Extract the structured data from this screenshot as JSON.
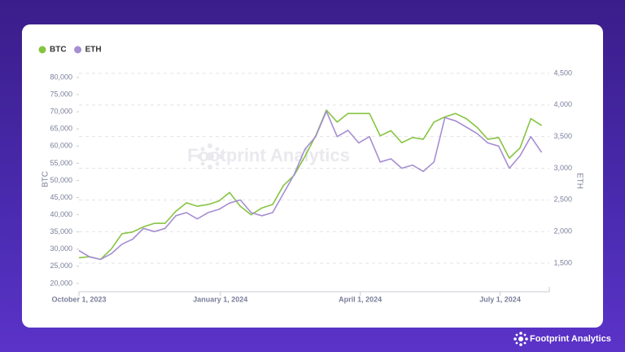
{
  "chart_data": {
    "type": "line",
    "watermark": "Footprint Analytics",
    "footer": "Footprint Analytics",
    "y_label": "BTC",
    "y2_label": "ETH",
    "x": [
      "2023-10-01",
      "2023-10-08",
      "2023-10-15",
      "2023-10-22",
      "2023-10-29",
      "2023-11-05",
      "2023-11-12",
      "2023-11-19",
      "2023-11-26",
      "2023-12-03",
      "2023-12-10",
      "2023-12-17",
      "2023-12-24",
      "2023-12-31",
      "2024-01-07",
      "2024-01-14",
      "2024-01-21",
      "2024-01-28",
      "2024-02-04",
      "2024-02-11",
      "2024-02-18",
      "2024-02-25",
      "2024-03-03",
      "2024-03-10",
      "2024-03-17",
      "2024-03-24",
      "2024-03-31",
      "2024-04-07",
      "2024-04-14",
      "2024-04-21",
      "2024-04-28",
      "2024-05-05",
      "2024-05-12",
      "2024-05-19",
      "2024-05-26",
      "2024-06-02",
      "2024-06-09",
      "2024-06-16",
      "2024-06-23",
      "2024-06-30",
      "2024-07-07",
      "2024-07-14",
      "2024-07-21",
      "2024-07-28"
    ],
    "series": [
      {
        "name": "BTC",
        "color": "#86c440",
        "axis": "y",
        "values": [
          27500,
          27800,
          27000,
          30000,
          34500,
          35000,
          36500,
          37500,
          37500,
          41000,
          43500,
          42500,
          43000,
          44000,
          46500,
          42500,
          40000,
          42000,
          43000,
          48500,
          51500,
          57000,
          63000,
          70500,
          67000,
          69500,
          69500,
          69500,
          63000,
          64500,
          61000,
          62500,
          62000,
          67000,
          68500,
          69500,
          68000,
          65500,
          62000,
          62500,
          56500,
          59500,
          68000,
          66000
        ]
      },
      {
        "name": "ETH",
        "color": "#a68ed2",
        "axis": "y2",
        "values": [
          1700,
          1600,
          1560,
          1650,
          1800,
          1880,
          2050,
          2000,
          2050,
          2250,
          2300,
          2200,
          2300,
          2350,
          2450,
          2500,
          2300,
          2250,
          2300,
          2600,
          2900,
          3300,
          3500,
          3900,
          3500,
          3600,
          3400,
          3500,
          3100,
          3150,
          3000,
          3050,
          2950,
          3100,
          3800,
          3750,
          3650,
          3550,
          3400,
          3350,
          3000,
          3200,
          3500,
          3250
        ]
      }
    ],
    "xlim": [
      "2023-10-01",
      "2024-08-02"
    ],
    "xticks": [
      {
        "value": "2023-10-01",
        "label": "October 1, 2023"
      },
      {
        "value": "2024-01-01",
        "label": "January 1, 2024"
      },
      {
        "value": "2024-04-01",
        "label": "April 1, 2024"
      },
      {
        "value": "2024-07-01",
        "label": "July 1, 2024"
      }
    ],
    "ylim": [
      17600,
      81200
    ],
    "yticks": [
      {
        "value": 20000,
        "label": "20,000"
      },
      {
        "value": 25000,
        "label": "25,000"
      },
      {
        "value": 30000,
        "label": "30,000"
      },
      {
        "value": 35000,
        "label": "35,000"
      },
      {
        "value": 40000,
        "label": "40,000"
      },
      {
        "value": 45000,
        "label": "45,000"
      },
      {
        "value": 50000,
        "label": "50,000"
      },
      {
        "value": 55000,
        "label": "55,000"
      },
      {
        "value": 60000,
        "label": "60,000"
      },
      {
        "value": 65000,
        "label": "65,000"
      },
      {
        "value": 70000,
        "label": "70,000"
      },
      {
        "value": 75000,
        "label": "75,000"
      },
      {
        "value": 80000,
        "label": "80,000"
      }
    ],
    "y2lim": [
      1050,
      4500
    ],
    "y2ticks": [
      {
        "value": 1500,
        "label": "1,500"
      },
      {
        "value": 2000,
        "label": "2,000"
      },
      {
        "value": 2500,
        "label": "2,500"
      },
      {
        "value": 3000,
        "label": "3,000"
      },
      {
        "value": 3500,
        "label": "3,500"
      },
      {
        "value": 4000,
        "label": "4,000"
      },
      {
        "value": 4500,
        "label": "4,500"
      }
    ],
    "grid": true,
    "legend": "top-left"
  }
}
